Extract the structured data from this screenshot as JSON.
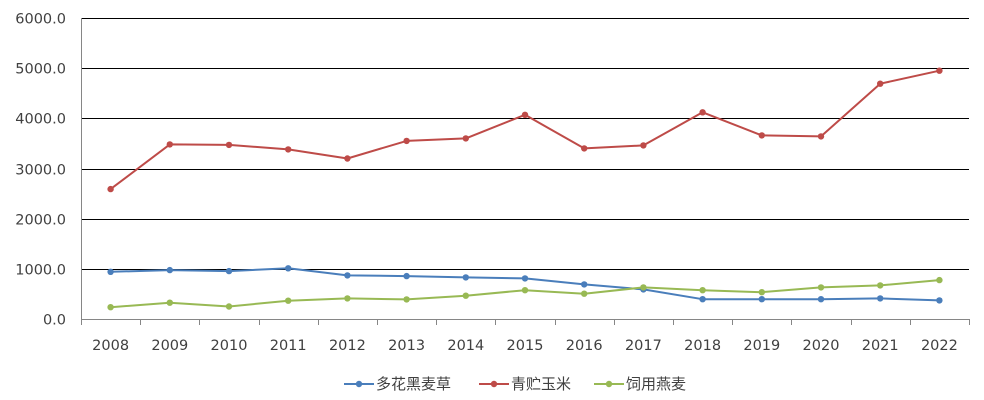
{
  "chart_data": {
    "type": "line",
    "title": "",
    "xlabel": "",
    "ylabel": "",
    "categories": [
      "2008",
      "2009",
      "2010",
      "2011",
      "2012",
      "2013",
      "2014",
      "2015",
      "2016",
      "2017",
      "2018",
      "2019",
      "2020",
      "2021",
      "2022"
    ],
    "ylim": [
      0,
      6000
    ],
    "y_ticks": [
      "0.0",
      "1000.0",
      "2000.0",
      "3000.0",
      "4000.0",
      "5000.0",
      "6000.0"
    ],
    "grid": true,
    "legend_position": "bottom",
    "series": [
      {
        "name": "多花黑麦草",
        "color": "#4a7ebb",
        "values": [
          940,
          975,
          955,
          1010,
          870,
          855,
          830,
          810,
          690,
          590,
          395,
          395,
          395,
          410,
          370
        ]
      },
      {
        "name": "青贮玉米",
        "color": "#be4b48",
        "values": [
          2590,
          3480,
          3470,
          3380,
          3200,
          3550,
          3600,
          4070,
          3400,
          3460,
          4120,
          3660,
          3640,
          4690,
          4950
        ]
      },
      {
        "name": "饲用燕麦",
        "color": "#98b954",
        "values": [
          235,
          325,
          250,
          365,
          410,
          390,
          465,
          575,
          505,
          630,
          575,
          535,
          630,
          670,
          775
        ]
      }
    ]
  }
}
